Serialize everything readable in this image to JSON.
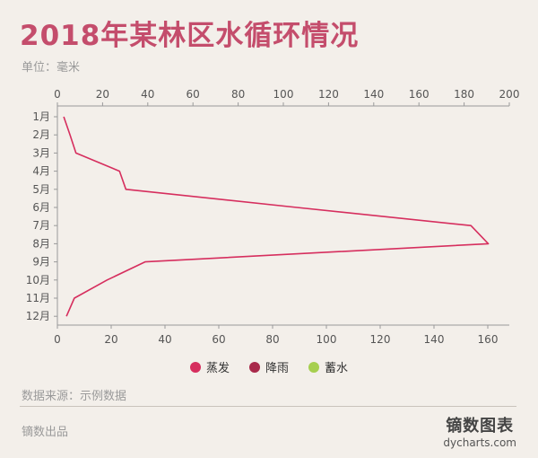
{
  "page": {
    "title": "2018年某林区水循环情况",
    "unit_label": "单位：毫米",
    "source": "数据来源：示例数据",
    "footer_left": "镝数出品",
    "brand_name": "镝数图表",
    "brand_url": "dycharts.com"
  },
  "chart_data": {
    "type": "line",
    "title": "2018年某林区水循环情况",
    "unit": "毫米",
    "orientation": "vertical-categories",
    "categories": [
      "1月",
      "2月",
      "3月",
      "4月",
      "5月",
      "6月",
      "7月",
      "8月",
      "9月",
      "10月",
      "11月",
      "12月"
    ],
    "top_axis": {
      "min": 0,
      "max": 200,
      "ticks": [
        0,
        20,
        40,
        60,
        80,
        100,
        120,
        140,
        160,
        180,
        200
      ]
    },
    "bottom_axis": {
      "min": 0,
      "max": 170,
      "ticks": [
        0,
        20,
        40,
        60,
        80,
        100,
        120,
        140,
        160
      ]
    },
    "series": [
      {
        "name": "蒸发",
        "color": "#d62e5e",
        "axis": "top",
        "values": [
          2.8,
          5.6,
          8.2,
          27.5,
          30.3,
          106,
          183,
          190.7,
          38.8,
          22,
          7.5,
          4
        ]
      },
      {
        "name": "降雨",
        "color": "#a8294a",
        "axis": "bottom",
        "values": null
      },
      {
        "name": "蓄水",
        "color": "#a6cf4f",
        "axis": "bottom",
        "values": null
      }
    ],
    "legend_position": "bottom",
    "grid": false
  }
}
